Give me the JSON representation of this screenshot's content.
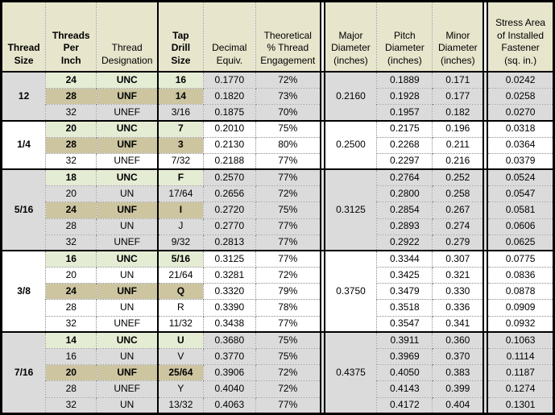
{
  "colors": {
    "header_bg": "#e7e5cc",
    "unc_row_highlight": "#e5ecd4",
    "unf_row_highlight": "#ccc5a0",
    "gray_group_bg": "#dbdbdb",
    "white_group_bg": "#ffffff",
    "gridline": "#8c8c8c",
    "thick_border": "#000000"
  },
  "table": {
    "headers": {
      "size": "Thread\nSize",
      "tpi": "Threads\nPer\nInch",
      "designation": "Thread\nDesignation",
      "tap_drill": "Tap\nDrill\nSize",
      "decimal": "Decimal\nEquiv.",
      "engagement": "Theoretical\n% Thread\nEngagement",
      "major": "Major\nDiameter\n(inches)",
      "pitch": "Pitch\nDiameter\n(inches)",
      "minor": "Minor\nDiameter\n(inches)",
      "stress": "Stress Area\nof Installed\nFastener\n(sq. in.)"
    },
    "groups": [
      {
        "size": "12",
        "shade": "gray",
        "major_diameter": "0.2160",
        "rows": [
          {
            "tpi": "24",
            "designation": "UNC",
            "tap_drill": "16",
            "decimal": "0.1770",
            "engagement": "72%",
            "pitch": "0.1889",
            "minor": "0.171",
            "stress": "0.0242",
            "highlight": "unc"
          },
          {
            "tpi": "28",
            "designation": "UNF",
            "tap_drill": "14",
            "decimal": "0.1820",
            "engagement": "73%",
            "pitch": "0.1928",
            "minor": "0.177",
            "stress": "0.0258",
            "highlight": "unf"
          },
          {
            "tpi": "32",
            "designation": "UNEF",
            "tap_drill": "3/16",
            "decimal": "0.1875",
            "engagement": "70%",
            "pitch": "0.1957",
            "minor": "0.182",
            "stress": "0.0270",
            "highlight": ""
          }
        ]
      },
      {
        "size": "1/4",
        "shade": "white",
        "major_diameter": "0.2500",
        "rows": [
          {
            "tpi": "20",
            "designation": "UNC",
            "tap_drill": "7",
            "decimal": "0.2010",
            "engagement": "75%",
            "pitch": "0.2175",
            "minor": "0.196",
            "stress": "0.0318",
            "highlight": "unc"
          },
          {
            "tpi": "28",
            "designation": "UNF",
            "tap_drill": "3",
            "decimal": "0.2130",
            "engagement": "80%",
            "pitch": "0.2268",
            "minor": "0.211",
            "stress": "0.0364",
            "highlight": "unf"
          },
          {
            "tpi": "32",
            "designation": "UNEF",
            "tap_drill": "7/32",
            "decimal": "0.2188",
            "engagement": "77%",
            "pitch": "0.2297",
            "minor": "0.216",
            "stress": "0.0379",
            "highlight": ""
          }
        ]
      },
      {
        "size": "5/16",
        "shade": "gray",
        "major_diameter": "0.3125",
        "rows": [
          {
            "tpi": "18",
            "designation": "UNC",
            "tap_drill": "F",
            "decimal": "0.2570",
            "engagement": "77%",
            "pitch": "0.2764",
            "minor": "0.252",
            "stress": "0.0524",
            "highlight": "unc"
          },
          {
            "tpi": "20",
            "designation": "UN",
            "tap_drill": "17/64",
            "decimal": "0.2656",
            "engagement": "72%",
            "pitch": "0.2800",
            "minor": "0.258",
            "stress": "0.0547",
            "highlight": ""
          },
          {
            "tpi": "24",
            "designation": "UNF",
            "tap_drill": "I",
            "decimal": "0.2720",
            "engagement": "75%",
            "pitch": "0.2854",
            "minor": "0.267",
            "stress": "0.0581",
            "highlight": "unf"
          },
          {
            "tpi": "28",
            "designation": "UN",
            "tap_drill": "J",
            "decimal": "0.2770",
            "engagement": "77%",
            "pitch": "0.2893",
            "minor": "0.274",
            "stress": "0.0606",
            "highlight": ""
          },
          {
            "tpi": "32",
            "designation": "UNEF",
            "tap_drill": "9/32",
            "decimal": "0.2813",
            "engagement": "77%",
            "pitch": "0.2922",
            "minor": "0.279",
            "stress": "0.0625",
            "highlight": ""
          }
        ]
      },
      {
        "size": "3/8",
        "shade": "white",
        "major_diameter": "0.3750",
        "rows": [
          {
            "tpi": "16",
            "designation": "UNC",
            "tap_drill": "5/16",
            "decimal": "0.3125",
            "engagement": "77%",
            "pitch": "0.3344",
            "minor": "0.307",
            "stress": "0.0775",
            "highlight": "unc"
          },
          {
            "tpi": "20",
            "designation": "UN",
            "tap_drill": "21/64",
            "decimal": "0.3281",
            "engagement": "72%",
            "pitch": "0.3425",
            "minor": "0.321",
            "stress": "0.0836",
            "highlight": ""
          },
          {
            "tpi": "24",
            "designation": "UNF",
            "tap_drill": "Q",
            "decimal": "0.3320",
            "engagement": "79%",
            "pitch": "0.3479",
            "minor": "0.330",
            "stress": "0.0878",
            "highlight": "unf"
          },
          {
            "tpi": "28",
            "designation": "UN",
            "tap_drill": "R",
            "decimal": "0.3390",
            "engagement": "78%",
            "pitch": "0.3518",
            "minor": "0.336",
            "stress": "0.0909",
            "highlight": ""
          },
          {
            "tpi": "32",
            "designation": "UNEF",
            "tap_drill": "11/32",
            "decimal": "0.3438",
            "engagement": "77%",
            "pitch": "0.3547",
            "minor": "0.341",
            "stress": "0.0932",
            "highlight": ""
          }
        ]
      },
      {
        "size": "7/16",
        "shade": "gray",
        "major_diameter": "0.4375",
        "rows": [
          {
            "tpi": "14",
            "designation": "UNC",
            "tap_drill": "U",
            "decimal": "0.3680",
            "engagement": "75%",
            "pitch": "0.3911",
            "minor": "0.360",
            "stress": "0.1063",
            "highlight": "unc"
          },
          {
            "tpi": "16",
            "designation": "UN",
            "tap_drill": "V",
            "decimal": "0.3770",
            "engagement": "75%",
            "pitch": "0.3969",
            "minor": "0.370",
            "stress": "0.1114",
            "highlight": ""
          },
          {
            "tpi": "20",
            "designation": "UNF",
            "tap_drill": "25/64",
            "decimal": "0.3906",
            "engagement": "72%",
            "pitch": "0.4050",
            "minor": "0.383",
            "stress": "0.1187",
            "highlight": "unf"
          },
          {
            "tpi": "28",
            "designation": "UNEF",
            "tap_drill": "Y",
            "decimal": "0.4040",
            "engagement": "72%",
            "pitch": "0.4143",
            "minor": "0.399",
            "stress": "0.1274",
            "highlight": ""
          },
          {
            "tpi": "32",
            "designation": "UN",
            "tap_drill": "13/32",
            "decimal": "0.4063",
            "engagement": "77%",
            "pitch": "0.4172",
            "minor": "0.404",
            "stress": "0.1301",
            "highlight": ""
          }
        ]
      }
    ]
  }
}
